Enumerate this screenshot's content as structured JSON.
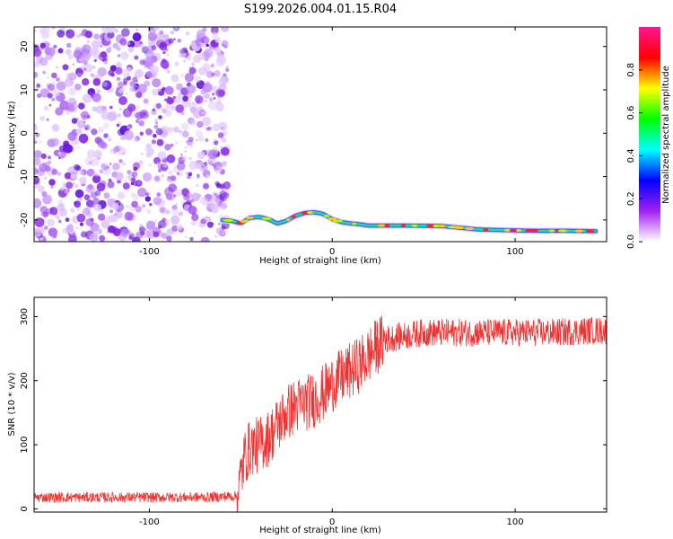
{
  "title": "S199.2026.004.01.15.R04",
  "chart_data": [
    {
      "type": "heatmap",
      "xlabel": "Height of straight line (km)",
      "ylabel": "Frequency (Hz)",
      "xlim": [
        -163,
        150
      ],
      "ylim": [
        -25,
        24.5
      ],
      "xticks": [
        -100,
        0,
        100
      ],
      "xtick_labels": [
        "-100",
        "0",
        "100"
      ],
      "yticks": [
        -20,
        -10,
        0,
        10,
        20
      ],
      "ytick_labels": [
        "-20",
        "-10",
        "0",
        "10",
        "20"
      ],
      "noise_region_x": [
        -163,
        -60
      ],
      "ridge_track": [
        [
          -60,
          -20
        ],
        [
          -55,
          -20.2
        ],
        [
          -50,
          -20.8
        ],
        [
          -45,
          -19.5
        ],
        [
          -40,
          -19.3
        ],
        [
          -35,
          -19.8
        ],
        [
          -30,
          -20.8
        ],
        [
          -25,
          -20.2
        ],
        [
          -20,
          -19
        ],
        [
          -15,
          -18.4
        ],
        [
          -10,
          -18.2
        ],
        [
          -5,
          -18.6
        ],
        [
          0,
          -19.8
        ],
        [
          5,
          -20.5
        ],
        [
          10,
          -20.8
        ],
        [
          15,
          -21
        ],
        [
          20,
          -21.3
        ],
        [
          40,
          -21.3
        ],
        [
          60,
          -21.4
        ],
        [
          80,
          -22.2
        ],
        [
          90,
          -22.3
        ],
        [
          100,
          -22.4
        ],
        [
          110,
          -22.5
        ],
        [
          130,
          -22.5
        ],
        [
          145,
          -22.6
        ]
      ],
      "colorbar": {
        "label": "Normalized spectral amplitude",
        "ticks": [
          0.0,
          0.2,
          0.4,
          0.6,
          0.8
        ],
        "tick_labels": [
          "0.0",
          "0.2",
          "0.4",
          "0.6",
          "0.8"
        ],
        "range": [
          0,
          1
        ],
        "colors": [
          "#ffffff",
          "#a020f0",
          "#0000ff",
          "#00ffff",
          "#00ff00",
          "#ffff00",
          "#ff0000",
          "#ff1493"
        ]
      }
    },
    {
      "type": "line",
      "xlabel": "Height of straight line (km)",
      "ylabel": "SNR (10 * v/v)",
      "xlim": [
        -163,
        150
      ],
      "ylim": [
        -5,
        330
      ],
      "xticks": [
        -100,
        0,
        100
      ],
      "xtick_labels": [
        "-100",
        "0",
        "100"
      ],
      "yticks": [
        0,
        100,
        200,
        300
      ],
      "ytick_labels": [
        "0",
        "100",
        "200",
        "300"
      ],
      "line_color": "#ee3333",
      "series": [
        {
          "name": "SNR",
          "x": [
            -163,
            -150,
            -130,
            -110,
            -90,
            -70,
            -52,
            -50,
            -48,
            -45,
            -40,
            -35,
            -30,
            -25,
            -20,
            -15,
            -10,
            -5,
            0,
            5,
            10,
            15,
            20,
            25,
            30,
            40,
            50,
            60,
            80,
            100,
            120,
            140,
            150
          ],
          "y": [
            18,
            18,
            18,
            18,
            18,
            18,
            20,
            50,
            80,
            95,
            100,
            110,
            130,
            150,
            160,
            165,
            170,
            180,
            195,
            205,
            215,
            225,
            240,
            255,
            265,
            270,
            275,
            275,
            275,
            275,
            275,
            278,
            278
          ]
        }
      ]
    }
  ]
}
